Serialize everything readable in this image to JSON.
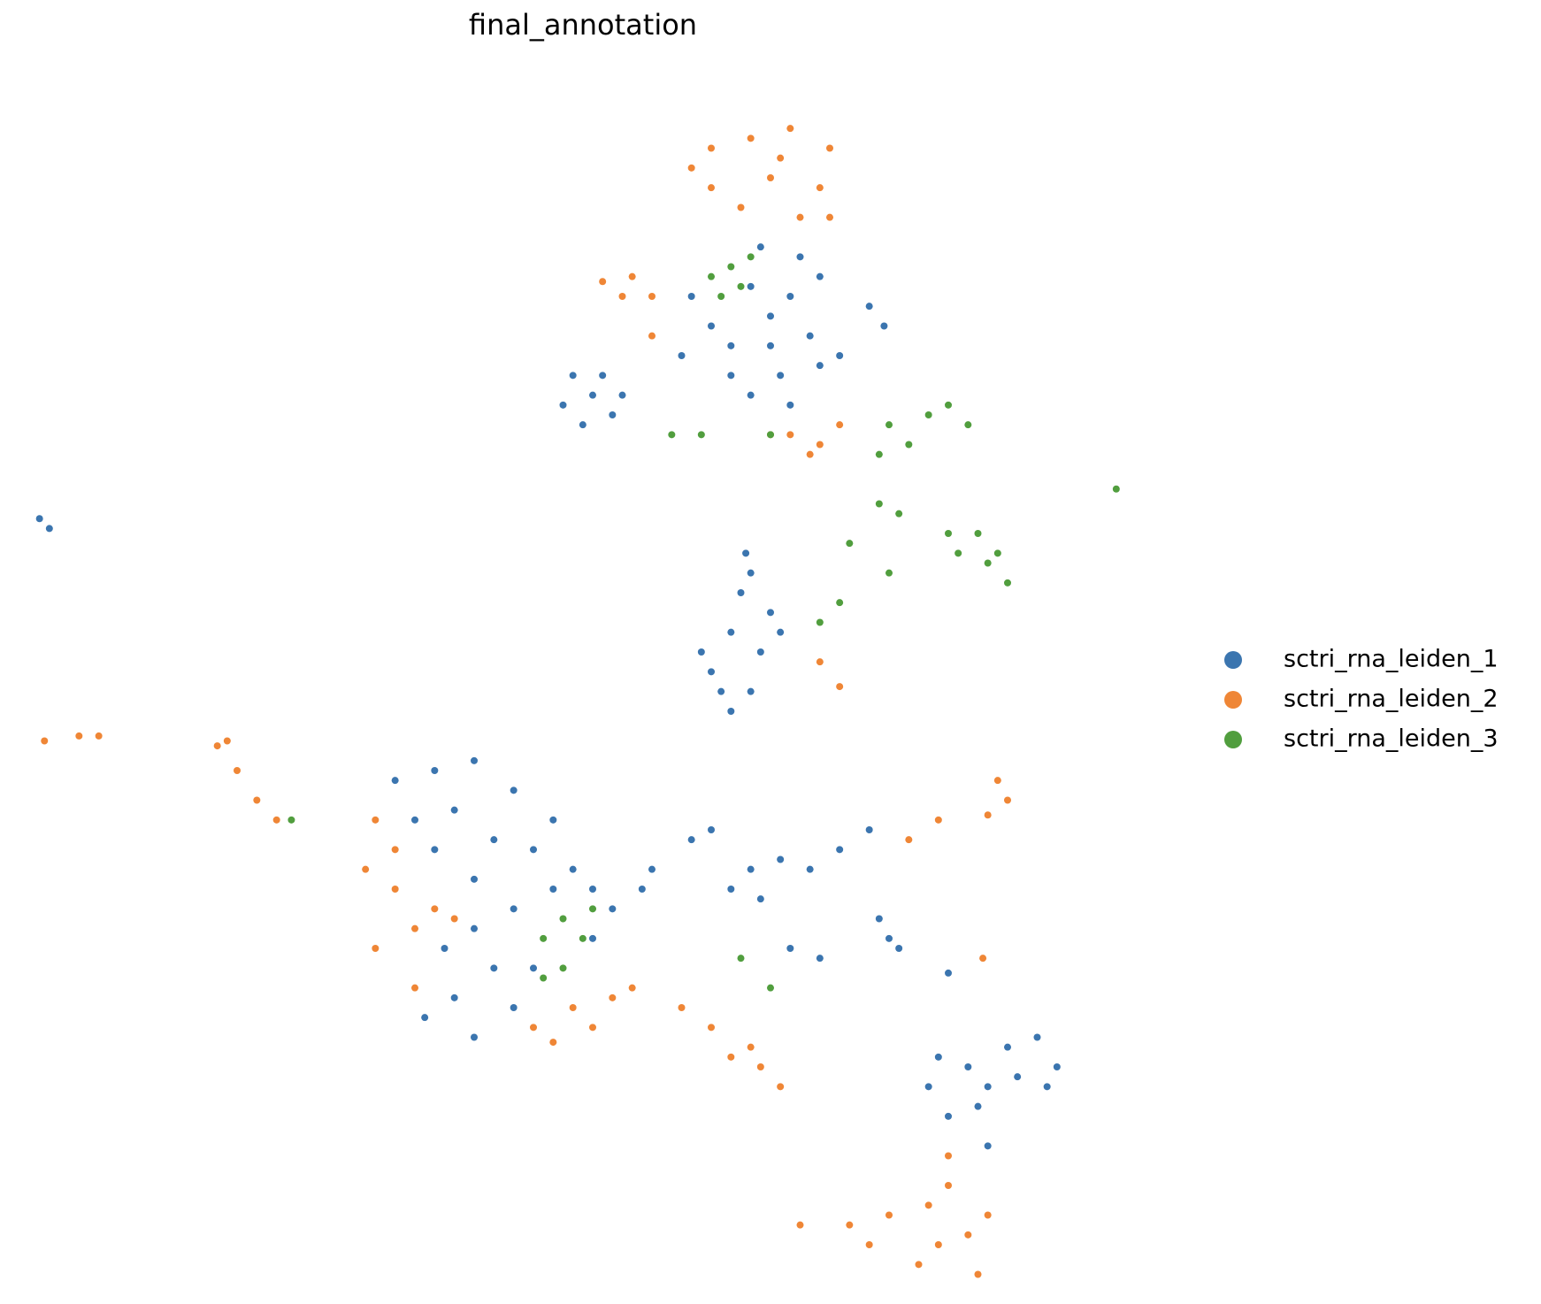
{
  "chart_data": {
    "type": "scatter",
    "title": "final_annotation",
    "xlim": [
      0,
      15.6
    ],
    "ylim": [
      -13.2,
      0
    ],
    "series": [
      {
        "name": "sctri_rna_leiden_1",
        "color": "#3b75af",
        "x": [
          7.8,
          7.6,
          8.0,
          8.2,
          7.4,
          7.9,
          8.3,
          7.2,
          7.7,
          8.1,
          7.0,
          8.5,
          7.6,
          8.0,
          7.4,
          6.9,
          8.8,
          8.95,
          8.3,
          7.8,
          6.0,
          5.8,
          6.2,
          5.9,
          5.7,
          6.1,
          6.3,
          0.4,
          0.5,
          7.5,
          7.4,
          7.6,
          7.2,
          7.4,
          7.7,
          7.8,
          7.3,
          7.6,
          7.9,
          7.1,
          7.55,
          4.0,
          4.4,
          4.8,
          5.2,
          4.6,
          5.0,
          5.4,
          4.8,
          4.4,
          4.2,
          5.6,
          5.8,
          6.0,
          5.2,
          4.8,
          5.0,
          4.6,
          4.3,
          4.8,
          5.2,
          6.0,
          6.2,
          5.6,
          4.5,
          5.4,
          7.0,
          7.2,
          7.6,
          7.9,
          7.4,
          7.7,
          8.2,
          8.5,
          6.6,
          6.5,
          8.8,
          8.0,
          8.3,
          9.0,
          9.1,
          8.9,
          9.6,
          9.4,
          9.8,
          10.2,
          10.5,
          10.7,
          10.0,
          9.6,
          10.3,
          10.6,
          9.5,
          10.0,
          9.9
        ],
        "y": [
          -3.2,
          -2.9,
          -3.0,
          -3.4,
          -3.5,
          -3.8,
          -3.7,
          -3.3,
          -2.5,
          -2.6,
          -3.0,
          -3.6,
          -4.0,
          -4.1,
          -3.8,
          -3.6,
          -3.1,
          -3.3,
          -2.8,
          -3.5,
          -4.0,
          -3.8,
          -4.2,
          -4.3,
          -4.1,
          -3.8,
          -4.0,
          -5.25,
          -5.35,
          -6.0,
          -6.4,
          -5.8,
          -6.8,
          -7.2,
          -6.6,
          -6.2,
          -7.0,
          -7.0,
          -6.4,
          -6.6,
          -5.6,
          -7.9,
          -7.8,
          -7.7,
          -8.0,
          -8.2,
          -8.5,
          -8.6,
          -8.9,
          -8.6,
          -8.3,
          -8.3,
          -8.8,
          -9.0,
          -9.2,
          -9.4,
          -9.8,
          -10.1,
          -10.3,
          -10.5,
          -10.2,
          -9.5,
          -9.2,
          -9.0,
          -9.6,
          -9.8,
          -8.5,
          -8.4,
          -8.8,
          -8.7,
          -9.0,
          -9.1,
          -8.8,
          -8.6,
          -8.8,
          -9.0,
          -8.4,
          -9.6,
          -9.7,
          -9.5,
          -9.6,
          -9.3,
          -9.85,
          -11.0,
          -10.8,
          -10.6,
          -10.5,
          -10.8,
          -11.0,
          -11.3,
          -10.9,
          -11.0,
          -10.7,
          -11.6,
          -11.2
        ]
      },
      {
        "name": "sctri_rna_leiden_2",
        "color": "#ef8636",
        "x": [
          7.2,
          7.6,
          8.0,
          8.4,
          7.2,
          7.8,
          8.3,
          7.5,
          8.1,
          7.0,
          7.9,
          8.4,
          6.1,
          6.4,
          6.6,
          6.3,
          6.6,
          8.0,
          8.3,
          8.5,
          8.2,
          7.8,
          8.3,
          8.5,
          0.45,
          0.8,
          1.0,
          2.2,
          2.4,
          2.6,
          2.8,
          2.3,
          3.8,
          3.7,
          4.0,
          4.2,
          3.8,
          4.4,
          4.0,
          4.2,
          4.6,
          5.4,
          5.8,
          6.0,
          6.2,
          5.6,
          6.4,
          6.9,
          7.2,
          7.4,
          7.7,
          7.9,
          7.6,
          10.1,
          10.2,
          9.5,
          9.2,
          10.0,
          9.95,
          8.1,
          8.6,
          9.0,
          9.4,
          9.6,
          9.8,
          9.5,
          9.9,
          9.3,
          8.8,
          9.6,
          10.0
        ],
        "y": [
          -1.5,
          -1.4,
          -1.3,
          -1.5,
          -1.9,
          -1.8,
          -1.9,
          -2.1,
          -2.2,
          -1.7,
          -1.6,
          -2.2,
          -2.85,
          -2.8,
          -3.0,
          -3.0,
          -3.4,
          -4.4,
          -4.5,
          -4.3,
          -4.6,
          -4.4,
          -6.7,
          -6.95,
          -7.5,
          -7.45,
          -7.45,
          -7.55,
          -7.8,
          -8.1,
          -8.3,
          -7.5,
          -8.3,
          -8.8,
          -9.0,
          -9.4,
          -9.6,
          -9.2,
          -8.6,
          -10.0,
          -9.3,
          -10.4,
          -10.2,
          -10.4,
          -10.1,
          -10.55,
          -10.0,
          -10.2,
          -10.4,
          -10.7,
          -10.8,
          -11.0,
          -10.6,
          -7.9,
          -8.1,
          -8.3,
          -8.5,
          -8.25,
          -9.7,
          -12.4,
          -12.4,
          -12.3,
          -12.2,
          -12.0,
          -12.5,
          -12.6,
          -12.9,
          -12.8,
          -12.6,
          -11.7,
          -12.3
        ]
      },
      {
        "name": "sctri_rna_leiden_3",
        "color": "#519e3e",
        "x": [
          7.2,
          7.4,
          7.6,
          7.3,
          7.5,
          6.8,
          7.1,
          7.8,
          9.0,
          9.4,
          9.6,
          9.8,
          9.2,
          8.9,
          8.9,
          9.1,
          9.6,
          9.9,
          10.1,
          10.2,
          10.0,
          9.7,
          9.0,
          8.6,
          8.3,
          8.5,
          11.3,
          5.7,
          5.9,
          5.7,
          5.5,
          6.0,
          5.5,
          7.5,
          7.8,
          2.95
        ],
        "y": [
          -2.8,
          -2.7,
          -2.6,
          -3.0,
          -2.9,
          -4.4,
          -4.4,
          -4.4,
          -4.3,
          -4.2,
          -4.1,
          -4.3,
          -4.5,
          -4.6,
          -5.1,
          -5.2,
          -5.4,
          -5.4,
          -5.6,
          -5.9,
          -5.7,
          -5.6,
          -5.8,
          -5.5,
          -6.3,
          -6.1,
          -4.95,
          -9.3,
          -9.5,
          -9.8,
          -9.9,
          -9.2,
          -9.5,
          -9.7,
          -10.0,
          -8.3
        ]
      }
    ]
  }
}
